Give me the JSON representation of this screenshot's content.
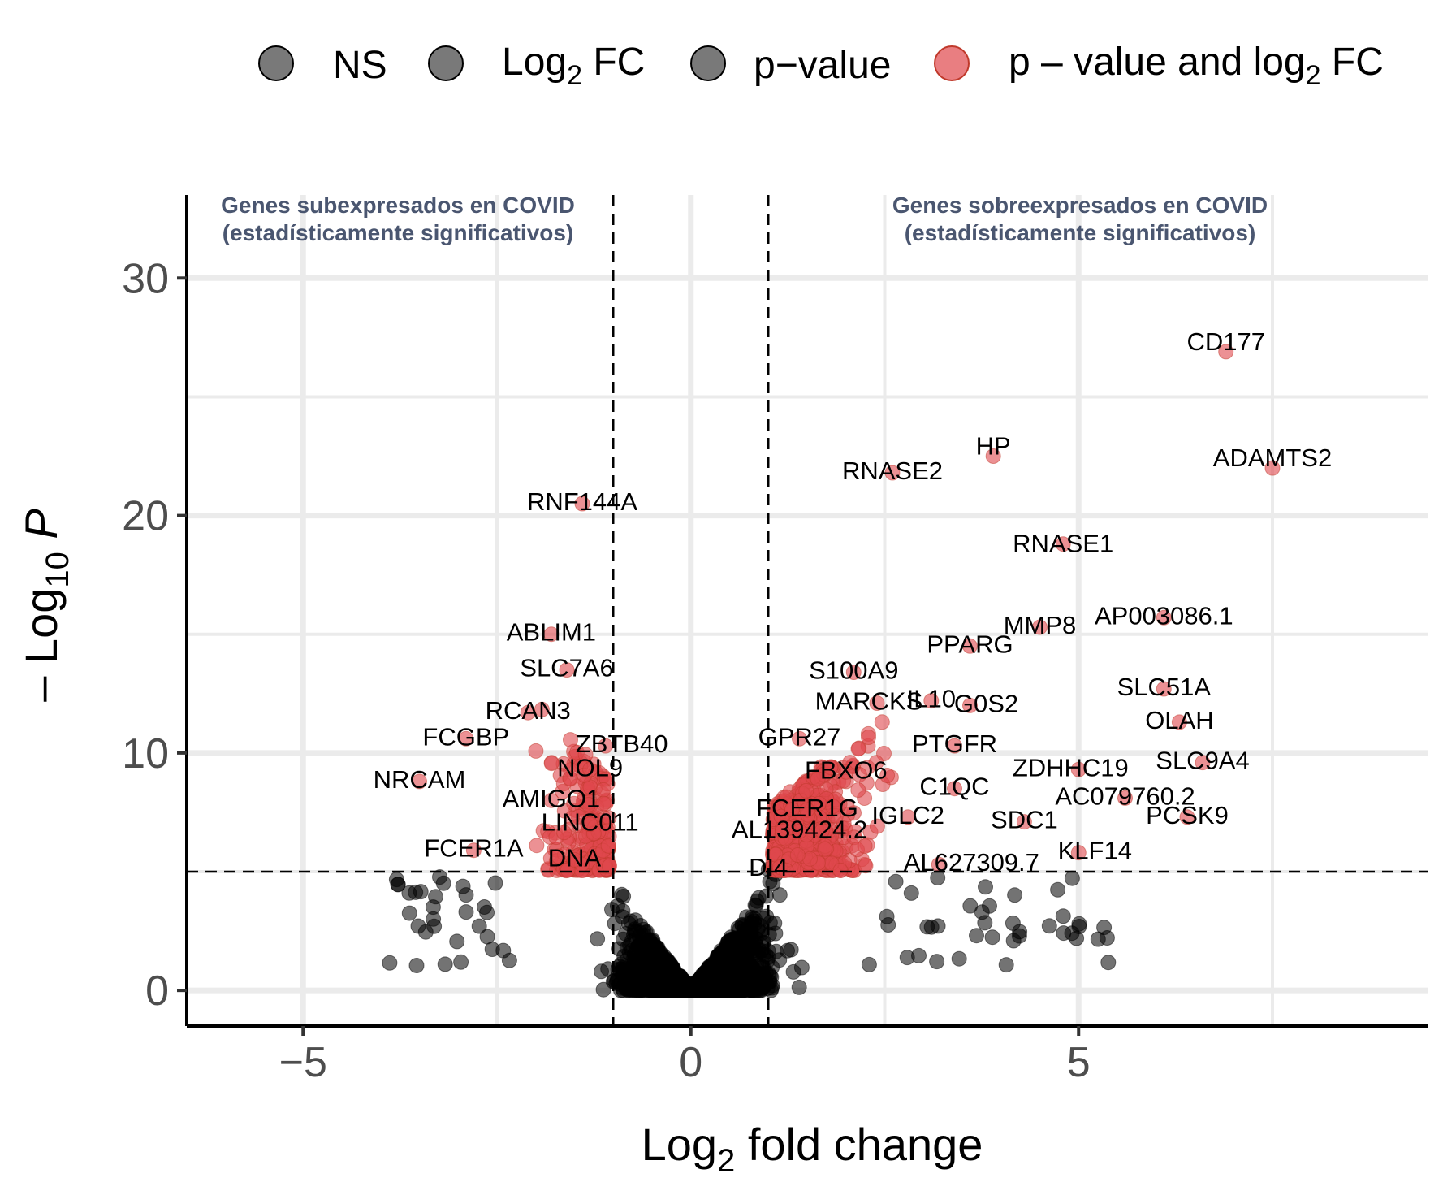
{
  "chart_data": {
    "type": "scatter",
    "xlabel": "Log2 fold change",
    "ylabel": "-Log10 P",
    "xlim": [
      -6.5,
      9.5
    ],
    "ylim": [
      -1.5,
      33.5
    ],
    "x_ticks": [
      -5,
      0,
      5
    ],
    "x_tick_labels": [
      "−5",
      "0",
      "5"
    ],
    "y_ticks": [
      0,
      10,
      20,
      30
    ],
    "y_tick_labels": [
      "0",
      "10",
      "20",
      "30"
    ],
    "grid": true,
    "fc_cutoff": 1,
    "p_cutoff": 5,
    "legend": {
      "position": "top",
      "items": [
        {
          "label": "NS",
          "color": "#404040"
        },
        {
          "label": "Log2 FC",
          "color": "#404040"
        },
        {
          "label": "p−value",
          "color": "#404040"
        },
        {
          "label": "p – value and log2 FC",
          "color": "#e0474c"
        }
      ]
    },
    "annotations": {
      "left_line1": "Genes subexpresados en COVID",
      "left_line2": "(estadísticamente significativos)",
      "right_line1": "Genes sobreexpresados en COVID",
      "right_line2": "(estadísticamente significativos)"
    },
    "colors": {
      "ns": "#000000",
      "sig": "#e0474c",
      "grid": "#ebebeb"
    },
    "labeled_points": [
      {
        "gene": "CD177",
        "x": 6.9,
        "y": 26.9
      },
      {
        "gene": "ADAMTS2",
        "x": 7.5,
        "y": 22.0
      },
      {
        "gene": "HP",
        "x": 3.9,
        "y": 22.5
      },
      {
        "gene": "RNASE2",
        "x": 2.6,
        "y": 21.8
      },
      {
        "gene": "RNASE1",
        "x": 4.8,
        "y": 18.8
      },
      {
        "gene": "AP003086.1",
        "x": 6.1,
        "y": 15.7
      },
      {
        "gene": "MMP8",
        "x": 4.5,
        "y": 15.3
      },
      {
        "gene": "PPARG",
        "x": 3.6,
        "y": 14.5
      },
      {
        "gene": "S100A9",
        "x": 2.1,
        "y": 13.4
      },
      {
        "gene": "SLC51A",
        "x": 6.1,
        "y": 12.7
      },
      {
        "gene": "MARCKS",
        "x": 2.4,
        "y": 12.1
      },
      {
        "gene": "IL10",
        "x": 3.1,
        "y": 12.2
      },
      {
        "gene": "G0S2",
        "x": 3.6,
        "y": 12.0
      },
      {
        "gene": "OLAH",
        "x": 6.3,
        "y": 11.3
      },
      {
        "gene": "GPR27",
        "x": 1.4,
        "y": 10.6
      },
      {
        "gene": "PTGFR",
        "x": 3.4,
        "y": 10.3
      },
      {
        "gene": "SLC9A4",
        "x": 6.6,
        "y": 9.6
      },
      {
        "gene": "ZDHHC19",
        "x": 5.0,
        "y": 9.3
      },
      {
        "gene": "FBXO6",
        "x": 2.0,
        "y": 9.2
      },
      {
        "gene": "C1QC",
        "x": 3.4,
        "y": 8.5
      },
      {
        "gene": "AC079760.2",
        "x": 5.6,
        "y": 8.1
      },
      {
        "gene": "FCER1G",
        "x": 1.5,
        "y": 7.6
      },
      {
        "gene": "IGLC2",
        "x": 2.8,
        "y": 7.3
      },
      {
        "gene": "SDC1",
        "x": 4.3,
        "y": 7.1
      },
      {
        "gene": "PCSK9",
        "x": 6.4,
        "y": 7.3
      },
      {
        "gene": "AL139424.2",
        "x": 1.4,
        "y": 6.7
      },
      {
        "gene": "KLF14",
        "x": 5.0,
        "y": 5.8
      },
      {
        "gene": "AL627309.7",
        "x": 3.2,
        "y": 5.3
      },
      {
        "gene": "DI4",
        "x": 1.0,
        "y": 5.1
      },
      {
        "gene": "RNF144A",
        "x": -1.4,
        "y": 20.5
      },
      {
        "gene": "ABLIM1",
        "x": -1.8,
        "y": 15.0
      },
      {
        "gene": "SLC7A6",
        "x": -1.6,
        "y": 13.5
      },
      {
        "gene": "RCAN3",
        "x": -2.1,
        "y": 11.7
      },
      {
        "gene": "FCGBP",
        "x": -2.9,
        "y": 10.6
      },
      {
        "gene": "ZBTB40",
        "x": -1.1,
        "y": 10.3
      },
      {
        "gene": "NOL9",
        "x": -1.3,
        "y": 9.3
      },
      {
        "gene": "NRCAM",
        "x": -3.5,
        "y": 8.8
      },
      {
        "gene": "AMIGO1",
        "x": -1.8,
        "y": 8.0
      },
      {
        "gene": "LINC011",
        "x": -1.3,
        "y": 7.0
      },
      {
        "gene": "FCER1A",
        "x": -2.8,
        "y": 5.9
      },
      {
        "gene": "DNA",
        "x": -1.5,
        "y": 5.5
      }
    ]
  }
}
